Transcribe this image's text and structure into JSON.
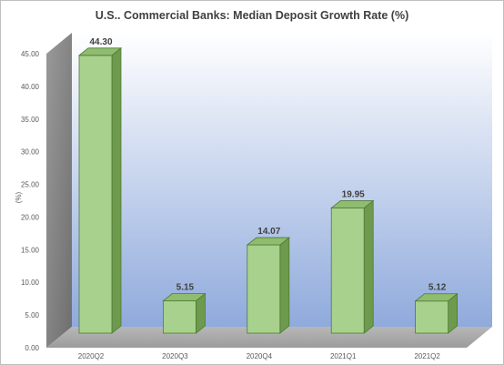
{
  "chart_data": {
    "type": "bar",
    "title": "U.S.. Commercial Banks: Median Deposit Growth Rate (%)",
    "ylabel": "(%)",
    "xlabel": "",
    "categories": [
      "2020Q2",
      "2020Q3",
      "2020Q4",
      "2021Q1",
      "2021Q2"
    ],
    "values": [
      44.3,
      5.15,
      14.07,
      19.95,
      5.12
    ],
    "value_labels": [
      "44.30",
      "5.15",
      "14.07",
      "19.95",
      "5.12"
    ],
    "ylim": [
      0,
      45
    ],
    "y_ticks": [
      0,
      5,
      10,
      15,
      20,
      25,
      30,
      35,
      40,
      45
    ],
    "y_tick_labels": [
      "0.00",
      "5.00",
      "10.00",
      "15.00",
      "20.00",
      "25.00",
      "30.00",
      "35.00",
      "40.00",
      "45.00"
    ],
    "grid": false,
    "legend": "none",
    "style": "3d-column",
    "colors": {
      "bar_front": "#a9d18e",
      "bar_side": "#6d9a4c",
      "bar_top": "#8fbc6f",
      "bar_edge": "#4e7a34",
      "wall_top": "#ffffff",
      "wall_bottom": "#8faadc",
      "side_wall": "#7f7f7f",
      "floor": "#a6a6a6"
    }
  }
}
